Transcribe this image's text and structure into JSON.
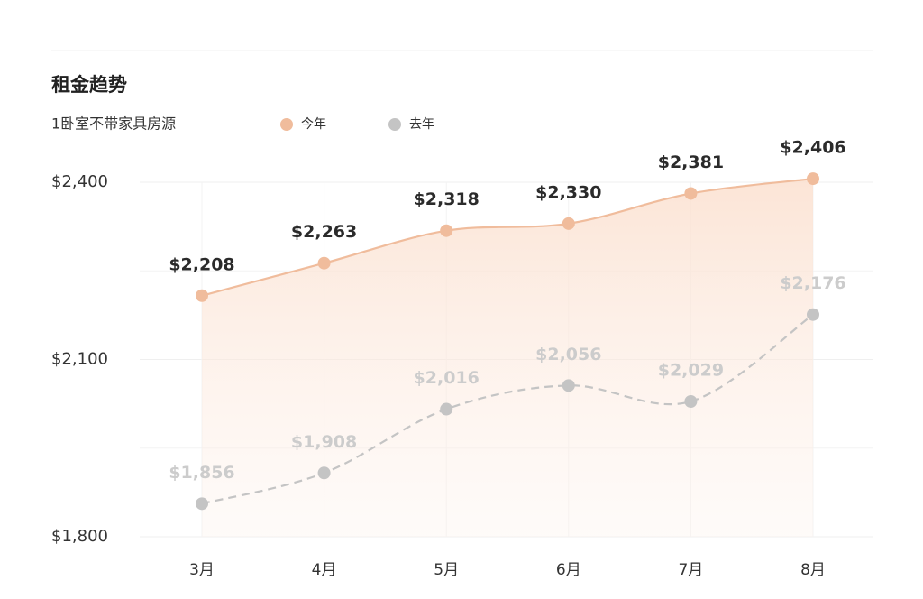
{
  "chart_data": {
    "type": "line",
    "title": "租金趋势",
    "subtitle": "1卧室不带家具房源",
    "categories": [
      "3月",
      "4月",
      "5月",
      "6月",
      "7月",
      "8月"
    ],
    "series": [
      {
        "name": "今年",
        "color": "#f0bc9c",
        "area": true,
        "dashed": false,
        "values": [
          2208,
          2263,
          2318,
          2330,
          2381,
          2406
        ],
        "value_labels": [
          "$2,208",
          "$2,263",
          "$2,318",
          "$2,330",
          "$2,381",
          "$2,406"
        ],
        "label_color": "#2b2b2b"
      },
      {
        "name": "去年",
        "color": "#c4c4c4",
        "area": false,
        "dashed": true,
        "values": [
          1856,
          1908,
          2016,
          2056,
          2029,
          2176
        ],
        "value_labels": [
          "$1,856",
          "$1,908",
          "$2,016",
          "$2,056",
          "$2,029",
          "$2,176"
        ],
        "label_color": "#cccccc"
      }
    ],
    "ylim": [
      1800,
      2400
    ],
    "yticks": [
      {
        "value": 1800,
        "label": "$1,800"
      },
      {
        "value": 2100,
        "label": "$2,100"
      },
      {
        "value": 2400,
        "label": "$2,400"
      }
    ],
    "minor_gridlines": [
      1950,
      2250
    ],
    "grid": true
  }
}
